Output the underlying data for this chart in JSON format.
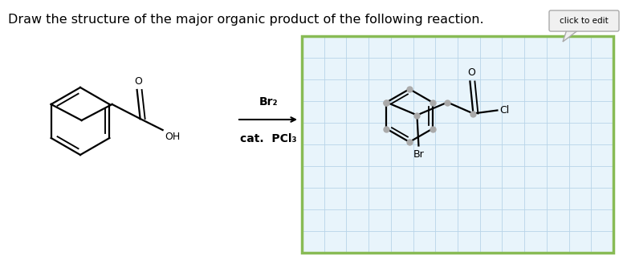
{
  "title": "Draw the structure of the major organic product of the following reaction.",
  "title_fontsize": 11.5,
  "bg_color": "#ffffff",
  "grid_color": "#b8d4e8",
  "grid_border_color": "#88bb55",
  "grid_inner_color": "#e8f4fb",
  "reagent_above": "Br₂",
  "reagent_below": "cat.  PCl₃",
  "click_to_edit_text": "click to edit",
  "n_cols": 14,
  "n_rows": 10
}
